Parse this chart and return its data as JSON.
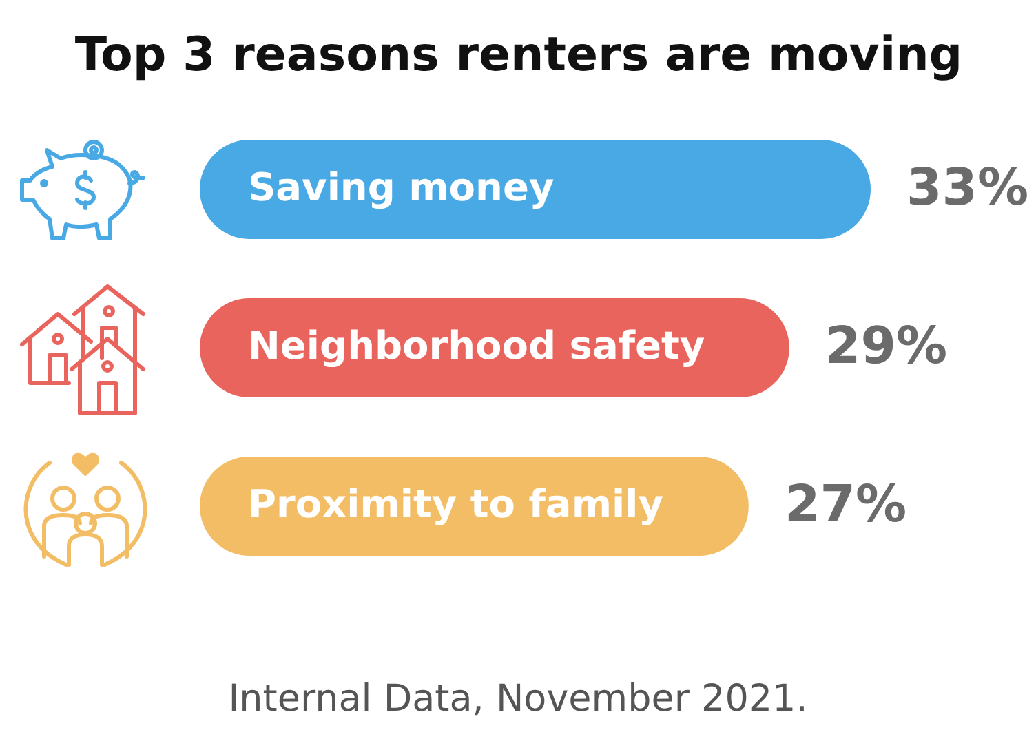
{
  "chart_data": {
    "type": "bar",
    "orientation": "horizontal",
    "title": "Top 3 reasons renters are moving",
    "categories": [
      "Saving money",
      "Neighborhood safety",
      "Proximity to family"
    ],
    "values": [
      33,
      29,
      27
    ],
    "value_labels": [
      "33%",
      "29%",
      "27%"
    ],
    "colors": [
      "#49a9e5",
      "#e9645d",
      "#f3bd66"
    ],
    "tick_labels": "y",
    "annotations": [
      "Internal Data, November 2021."
    ]
  }
}
